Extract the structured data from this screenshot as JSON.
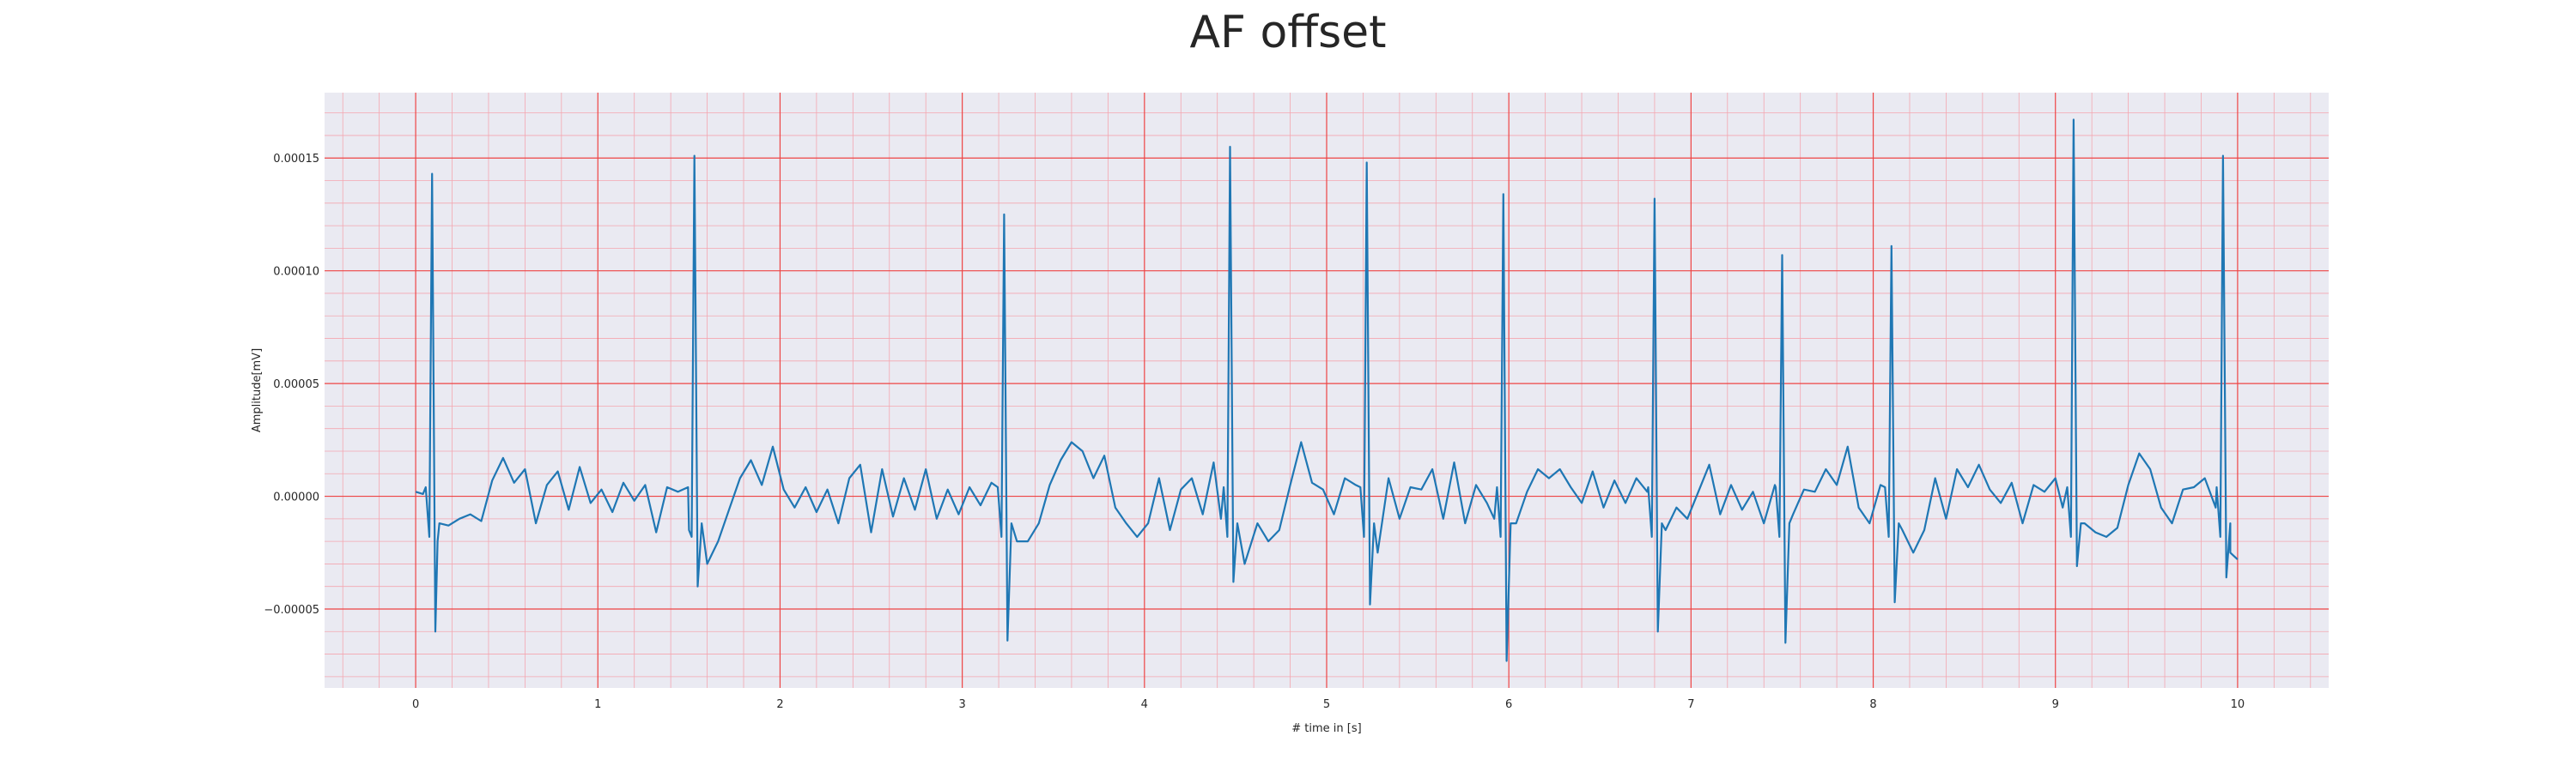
{
  "chart_data": {
    "type": "line",
    "title": "AF offset",
    "xlabel": "# time in [s]",
    "ylabel": "Amplitude[mV]",
    "xlim": [
      -0.5,
      10.5
    ],
    "ylim": [
      -8.5e-05,
      0.000179
    ],
    "xticks": [
      0,
      1,
      2,
      3,
      4,
      5,
      6,
      7,
      8,
      9,
      10
    ],
    "xtick_labels": [
      "0",
      "1",
      "2",
      "3",
      "4",
      "5",
      "6",
      "7",
      "8",
      "9",
      "10"
    ],
    "yticks": [
      -5e-05,
      0,
      5e-05,
      0.0001,
      0.00015
    ],
    "ytick_labels": [
      "−0.00005",
      "0.00000",
      "0.00005",
      "0.00010",
      "0.00015"
    ],
    "grid": true,
    "minor_grid": true,
    "colors": {
      "line": "#1f77b4",
      "plot_background": "#eaeaf2",
      "major_grid": "#ee4444",
      "minor_grid": "#f4a6b0"
    },
    "beats": [
      {
        "t": 0.09,
        "peak": 0.000143,
        "trough": -6e-05
      },
      {
        "t": 1.53,
        "peak": 0.000151,
        "trough": -4e-05
      },
      {
        "t": 3.23,
        "peak": 0.000125,
        "trough": -6.4e-05
      },
      {
        "t": 4.47,
        "peak": 0.000155,
        "trough": -3.8e-05
      },
      {
        "t": 5.22,
        "peak": 0.000148,
        "trough": -4.8e-05
      },
      {
        "t": 5.97,
        "peak": 0.000134,
        "trough": -7.3e-05
      },
      {
        "t": 6.8,
        "peak": 0.000132,
        "trough": -6e-05
      },
      {
        "t": 7.5,
        "peak": 0.000107,
        "trough": -6.5e-05
      },
      {
        "t": 8.1,
        "peak": 0.000111,
        "trough": -4.7e-05
      },
      {
        "t": 9.1,
        "peak": 0.000167,
        "trough": -3.1e-05
      },
      {
        "t": 9.92,
        "peak": 0.000151,
        "trough": -3.6e-05
      }
    ],
    "baseline_points": [
      [
        0.0,
        2e-06
      ],
      [
        0.04,
        1e-06
      ],
      [
        0.12,
        -2e-05
      ],
      [
        0.18,
        -1.3e-05
      ],
      [
        0.24,
        -1e-05
      ],
      [
        0.3,
        -8e-06
      ],
      [
        0.36,
        -1.1e-05
      ],
      [
        0.42,
        7e-06
      ],
      [
        0.48,
        1.7e-05
      ],
      [
        0.54,
        6e-06
      ],
      [
        0.6,
        1.2e-05
      ],
      [
        0.66,
        -1.2e-05
      ],
      [
        0.72,
        5e-06
      ],
      [
        0.78,
        1.1e-05
      ],
      [
        0.84,
        -6e-06
      ],
      [
        0.9,
        1.3e-05
      ],
      [
        0.96,
        -3e-06
      ],
      [
        1.02,
        3e-06
      ],
      [
        1.08,
        -7e-06
      ],
      [
        1.14,
        6e-06
      ],
      [
        1.2,
        -2e-06
      ],
      [
        1.26,
        5e-06
      ],
      [
        1.32,
        -1.6e-05
      ],
      [
        1.38,
        4e-06
      ],
      [
        1.44,
        2e-06
      ],
      [
        1.5,
        -1.5e-05
      ],
      [
        1.6,
        -3e-05
      ],
      [
        1.66,
        -2e-05
      ],
      [
        1.72,
        -6e-06
      ],
      [
        1.78,
        8e-06
      ],
      [
        1.84,
        1.6e-05
      ],
      [
        1.9,
        5e-06
      ],
      [
        1.96,
        2.2e-05
      ],
      [
        2.02,
        3e-06
      ],
      [
        2.08,
        -5e-06
      ],
      [
        2.14,
        4e-06
      ],
      [
        2.2,
        -7e-06
      ],
      [
        2.26,
        3e-06
      ],
      [
        2.32,
        -1.2e-05
      ],
      [
        2.38,
        8e-06
      ],
      [
        2.44,
        1.4e-05
      ],
      [
        2.5,
        -1.6e-05
      ],
      [
        2.56,
        1.2e-05
      ],
      [
        2.62,
        -9e-06
      ],
      [
        2.68,
        8e-06
      ],
      [
        2.74,
        -6e-06
      ],
      [
        2.8,
        1.2e-05
      ],
      [
        2.86,
        -1e-05
      ],
      [
        2.92,
        3e-06
      ],
      [
        2.98,
        -8e-06
      ],
      [
        3.04,
        4e-06
      ],
      [
        3.1,
        -4e-06
      ],
      [
        3.16,
        6e-06
      ],
      [
        3.3,
        -2e-05
      ],
      [
        3.36,
        -2e-05
      ],
      [
        3.42,
        -1.2e-05
      ],
      [
        3.48,
        5e-06
      ],
      [
        3.54,
        1.6e-05
      ],
      [
        3.6,
        2.4e-05
      ],
      [
        3.66,
        2e-05
      ],
      [
        3.72,
        8e-06
      ],
      [
        3.78,
        1.8e-05
      ],
      [
        3.84,
        -5e-06
      ],
      [
        3.9,
        -1.2e-05
      ],
      [
        3.96,
        -1.8e-05
      ],
      [
        4.02,
        -1.2e-05
      ],
      [
        4.08,
        8e-06
      ],
      [
        4.14,
        -1.5e-05
      ],
      [
        4.2,
        3e-06
      ],
      [
        4.26,
        8e-06
      ],
      [
        4.32,
        -8e-06
      ],
      [
        4.38,
        1.5e-05
      ],
      [
        4.42,
        -1e-05
      ],
      [
        4.55,
        -3e-05
      ],
      [
        4.62,
        -1.2e-05
      ],
      [
        4.68,
        -2e-05
      ],
      [
        4.74,
        -1.5e-05
      ],
      [
        4.8,
        5e-06
      ],
      [
        4.86,
        2.4e-05
      ],
      [
        4.92,
        6e-06
      ],
      [
        4.98,
        3e-06
      ],
      [
        5.04,
        -8e-06
      ],
      [
        5.1,
        8e-06
      ],
      [
        5.16,
        5e-06
      ],
      [
        5.28,
        -2.5e-05
      ],
      [
        5.34,
        8e-06
      ],
      [
        5.4,
        -1e-05
      ],
      [
        5.46,
        4e-06
      ],
      [
        5.52,
        3e-06
      ],
      [
        5.58,
        1.2e-05
      ],
      [
        5.64,
        -1e-05
      ],
      [
        5.7,
        1.5e-05
      ],
      [
        5.76,
        -1.2e-05
      ],
      [
        5.82,
        5e-06
      ],
      [
        5.88,
        -3e-06
      ],
      [
        5.92,
        -1e-05
      ],
      [
        6.04,
        -1.2e-05
      ],
      [
        6.1,
        2e-06
      ],
      [
        6.16,
        1.2e-05
      ],
      [
        6.22,
        8e-06
      ],
      [
        6.28,
        1.2e-05
      ],
      [
        6.34,
        4e-06
      ],
      [
        6.4,
        -3e-06
      ],
      [
        6.46,
        1.1e-05
      ],
      [
        6.52,
        -5e-06
      ],
      [
        6.58,
        7e-06
      ],
      [
        6.64,
        -3e-06
      ],
      [
        6.7,
        8e-06
      ],
      [
        6.76,
        2e-06
      ],
      [
        6.86,
        -1.5e-05
      ],
      [
        6.92,
        -5e-06
      ],
      [
        6.98,
        -1e-05
      ],
      [
        7.04,
        2e-06
      ],
      [
        7.1,
        1.4e-05
      ],
      [
        7.16,
        -8e-06
      ],
      [
        7.22,
        5e-06
      ],
      [
        7.28,
        -6e-06
      ],
      [
        7.34,
        2e-06
      ],
      [
        7.4,
        -1.2e-05
      ],
      [
        7.46,
        5e-06
      ],
      [
        7.56,
        -8e-06
      ],
      [
        7.62,
        3e-06
      ],
      [
        7.68,
        2e-06
      ],
      [
        7.74,
        1.2e-05
      ],
      [
        7.8,
        5e-06
      ],
      [
        7.86,
        2.2e-05
      ],
      [
        7.92,
        -5e-06
      ],
      [
        7.98,
        -1.2e-05
      ],
      [
        8.04,
        5e-06
      ],
      [
        8.16,
        -1.5e-05
      ],
      [
        8.22,
        -2.5e-05
      ],
      [
        8.28,
        -1.5e-05
      ],
      [
        8.34,
        8e-06
      ],
      [
        8.4,
        -1e-05
      ],
      [
        8.46,
        1.2e-05
      ],
      [
        8.52,
        4e-06
      ],
      [
        8.58,
        1.4e-05
      ],
      [
        8.64,
        3e-06
      ],
      [
        8.7,
        -3e-06
      ],
      [
        8.76,
        6e-06
      ],
      [
        8.82,
        -1.2e-05
      ],
      [
        8.88,
        5e-06
      ],
      [
        8.94,
        2e-06
      ],
      [
        9.0,
        8e-06
      ],
      [
        9.04,
        -5e-06
      ],
      [
        9.16,
        -1.2e-05
      ],
      [
        9.22,
        -1.6e-05
      ],
      [
        9.28,
        -1.8e-05
      ],
      [
        9.34,
        -1.4e-05
      ],
      [
        9.4,
        5e-06
      ],
      [
        9.46,
        1.9e-05
      ],
      [
        9.52,
        1.2e-05
      ],
      [
        9.58,
        -5e-06
      ],
      [
        9.64,
        -1.2e-05
      ],
      [
        9.7,
        3e-06
      ],
      [
        9.76,
        4e-06
      ],
      [
        9.82,
        8e-06
      ],
      [
        9.88,
        -5e-06
      ],
      [
        9.96,
        -2.5e-05
      ],
      [
        10.0,
        -2.8e-05
      ]
    ]
  }
}
